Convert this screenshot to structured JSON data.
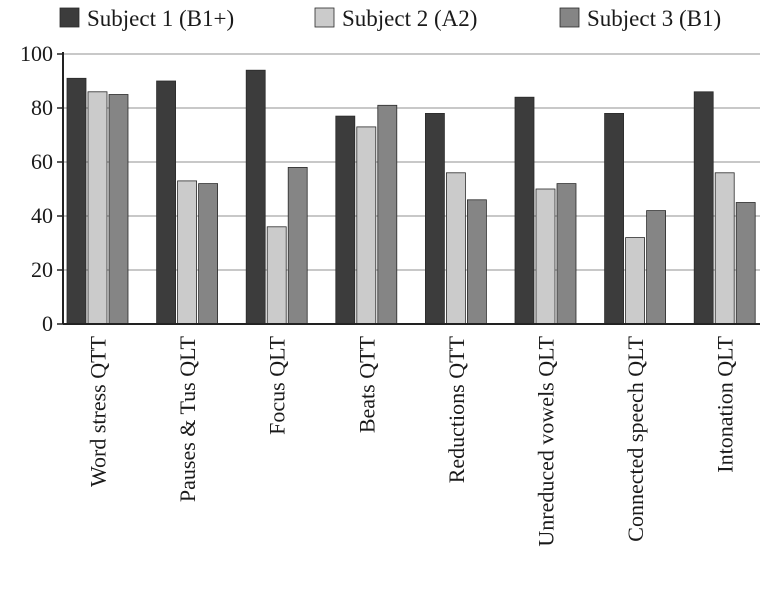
{
  "chart_data": {
    "type": "bar",
    "categories": [
      "Word stress QTT",
      "Pauses & Tus QLT",
      "Focus QLT",
      "Beats QTT",
      "Reductions QTT",
      "Unreduced vowels QLT",
      "Connected speech QLT",
      "Intonation QLT"
    ],
    "series": [
      {
        "name": "Subject 1 (B1+)",
        "color": "#3c3c3c",
        "values": [
          91,
          90,
          94,
          77,
          78,
          84,
          78,
          86
        ]
      },
      {
        "name": "Subject 2 (A2)",
        "color": "#cbcbcb",
        "values": [
          86,
          53,
          36,
          73,
          56,
          50,
          32,
          56
        ]
      },
      {
        "name": "Subject 3 (B1)",
        "color": "#858585",
        "values": [
          85,
          52,
          58,
          81,
          46,
          52,
          42,
          45
        ]
      }
    ],
    "yticks": [
      0,
      20,
      40,
      60,
      80,
      100
    ],
    "ylim": [
      0,
      100
    ],
    "grid": true,
    "legend_position": "top"
  }
}
